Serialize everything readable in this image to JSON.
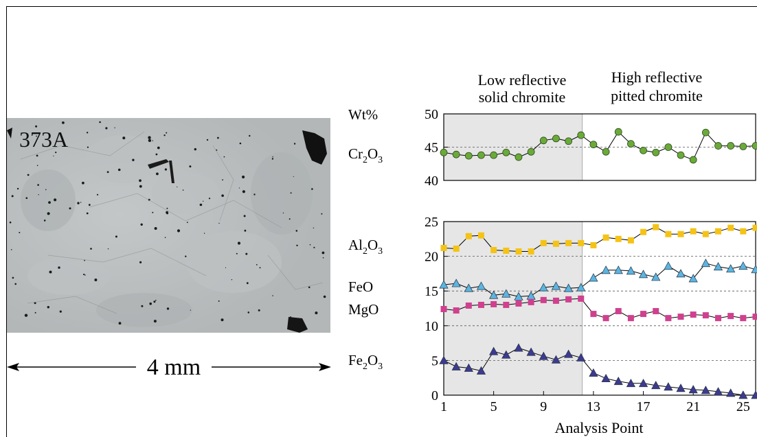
{
  "micrograph": {
    "sample_label": "373A",
    "scale_label": "4 mm"
  },
  "chart_data": [
    {
      "type": "line",
      "panel": "top",
      "ylabel": "Wt%",
      "ylim": [
        40,
        50
      ],
      "yticks": [
        40,
        45,
        50
      ],
      "xlim": [
        1,
        26
      ],
      "reference_lines": [
        45
      ],
      "shaded_region": {
        "x_range": [
          1,
          12.1
        ],
        "color": "#e6e6e6"
      },
      "region_labels": [
        {
          "line1": "Low reflective",
          "line2": "solid chromite"
        },
        {
          "line1": "High reflective",
          "line2": "pitted chromite"
        }
      ],
      "series": [
        {
          "name": "Cr2O3",
          "label": {
            "main": "Cr",
            "sub1": "2",
            "mid": "O",
            "sub2": "3"
          },
          "marker": "circle",
          "color": "#6aaa3a",
          "x": [
            1,
            2,
            3,
            4,
            5,
            6,
            7,
            8,
            9,
            10,
            11,
            12,
            13,
            14,
            15,
            16,
            17,
            18,
            19,
            20,
            21,
            22,
            23,
            24,
            25,
            26
          ],
          "values": [
            44.2,
            43.9,
            43.7,
            43.8,
            43.8,
            44.2,
            43.5,
            44.3,
            46.0,
            46.3,
            45.9,
            46.8,
            45.4,
            44.3,
            47.3,
            45.5,
            44.5,
            44.2,
            45.0,
            43.8,
            43.1,
            47.2,
            45.2,
            45.2,
            45.1,
            45.2
          ]
        }
      ]
    },
    {
      "type": "line",
      "panel": "bottom",
      "xlabel": "Analysis Point",
      "ylim": [
        0,
        25
      ],
      "yticks": [
        0,
        5,
        10,
        15,
        20,
        25
      ],
      "xticks": [
        1,
        5,
        9,
        13,
        17,
        21,
        25
      ],
      "xlim": [
        1,
        26
      ],
      "reference_lines": [
        5,
        10,
        15,
        20
      ],
      "shaded_region": {
        "x_range": [
          1,
          12.1
        ],
        "color": "#e6e6e6"
      },
      "series": [
        {
          "name": "Al2O3",
          "label": {
            "main": "Al",
            "sub1": "2",
            "mid": "O",
            "sub2": "3"
          },
          "marker": "square",
          "color": "#f5c316",
          "x": [
            1,
            2,
            3,
            4,
            5,
            6,
            7,
            8,
            9,
            10,
            11,
            12,
            13,
            14,
            15,
            16,
            17,
            18,
            19,
            20,
            21,
            22,
            23,
            24,
            25,
            26
          ],
          "values": [
            21.2,
            21.1,
            22.9,
            23.0,
            20.9,
            20.8,
            20.7,
            20.7,
            21.9,
            21.8,
            21.9,
            21.9,
            21.6,
            22.7,
            22.5,
            22.3,
            23.5,
            24.2,
            23.2,
            23.2,
            23.6,
            23.2,
            23.6,
            24.1,
            23.6,
            24.1
          ]
        },
        {
          "name": "FeO",
          "label": {
            "main": "FeO",
            "sub1": "",
            "mid": "",
            "sub2": ""
          },
          "marker": "triangle",
          "color": "#5cb4e0",
          "x": [
            1,
            2,
            3,
            4,
            5,
            6,
            7,
            8,
            9,
            10,
            11,
            12,
            13,
            14,
            15,
            16,
            17,
            18,
            19,
            20,
            21,
            22,
            23,
            24,
            25,
            26
          ],
          "values": [
            15.9,
            16.1,
            15.4,
            15.7,
            14.4,
            14.6,
            14.2,
            14.3,
            15.5,
            15.7,
            15.4,
            15.5,
            16.9,
            18.0,
            18.0,
            17.9,
            17.4,
            17.0,
            18.6,
            17.5,
            16.8,
            19.0,
            18.5,
            18.2,
            18.6,
            18.1
          ]
        },
        {
          "name": "MgO",
          "label": {
            "main": "MgO",
            "sub1": "",
            "mid": "",
            "sub2": ""
          },
          "marker": "square",
          "color": "#d0408f",
          "x": [
            1,
            2,
            3,
            4,
            5,
            6,
            7,
            8,
            9,
            10,
            11,
            12,
            13,
            14,
            15,
            16,
            17,
            18,
            19,
            20,
            21,
            22,
            23,
            24,
            25,
            26
          ],
          "values": [
            12.4,
            12.2,
            12.9,
            13.0,
            13.1,
            13.0,
            13.2,
            13.4,
            13.7,
            13.6,
            13.8,
            13.9,
            11.7,
            11.1,
            12.1,
            11.1,
            11.7,
            12.1,
            11.1,
            11.3,
            11.6,
            11.5,
            11.1,
            11.4,
            11.1,
            11.3
          ]
        },
        {
          "name": "Fe2O3",
          "label": {
            "main": "Fe",
            "sub1": "2",
            "mid": "O",
            "sub2": "3"
          },
          "marker": "triangle",
          "color": "#3e3a8f",
          "x": [
            1,
            2,
            3,
            4,
            5,
            6,
            7,
            8,
            9,
            10,
            11,
            12,
            13,
            14,
            15,
            16,
            17,
            18,
            19,
            20,
            21,
            22,
            23,
            24,
            25,
            26
          ],
          "values": [
            5.0,
            4.1,
            3.9,
            3.5,
            6.3,
            5.8,
            6.8,
            6.2,
            5.6,
            5.1,
            5.9,
            5.4,
            3.2,
            2.4,
            2.0,
            1.7,
            1.7,
            1.4,
            1.2,
            1.0,
            0.8,
            0.7,
            0.5,
            0.3,
            0.0,
            0.0
          ]
        }
      ]
    }
  ]
}
